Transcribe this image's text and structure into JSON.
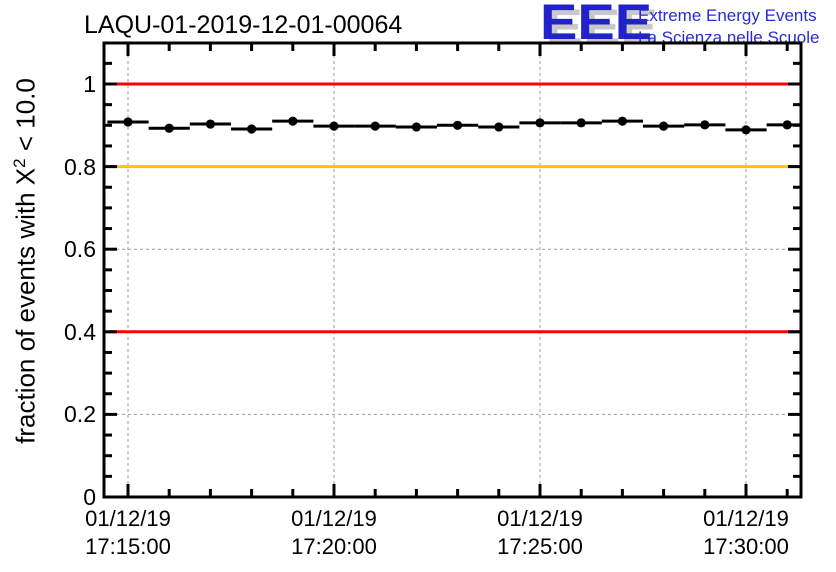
{
  "header": {
    "title": "LAQU-01-2019-12-01-00064"
  },
  "logo": {
    "acronym": "EEE",
    "line1": "Extreme Energy Events",
    "line2": "La Scienza nelle Scuole",
    "text_color": "#2a2ad6",
    "acronym_color": "#2222cc",
    "shadow_color": "#c9c9c9"
  },
  "chart_data": {
    "type": "scatter",
    "title": "LAQU-01-2019-12-01-00064",
    "xlabel": "",
    "ylabel": "fraction of events with X2 < 10.0",
    "ylabel_parts": {
      "prefix": "fraction of events with X",
      "sup": "2",
      "suffix": " < 10.0"
    },
    "ylim": [
      0,
      1.1
    ],
    "xlim_minutes": [
      -0.58,
      16.33
    ],
    "grid": true,
    "marker": "filled-circle",
    "marker_color": "#000000",
    "x_error_minutes": 0.5,
    "date": "01/12/19",
    "x_major_ticks": [
      {
        "minute": 0,
        "label_line1": "01/12/19",
        "label_line2": "17:15:00"
      },
      {
        "minute": 5,
        "label_line1": "01/12/19",
        "label_line2": "17:20:00"
      },
      {
        "minute": 10,
        "label_line1": "01/12/19",
        "label_line2": "17:25:00"
      },
      {
        "minute": 15,
        "label_line1": "01/12/19",
        "label_line2": "17:30:00"
      }
    ],
    "x_minor_step_minutes": 1,
    "y_major_ticks": [
      {
        "value": 0,
        "label": "0"
      },
      {
        "value": 0.2,
        "label": "0.2"
      },
      {
        "value": 0.4,
        "label": "0.4"
      },
      {
        "value": 0.6,
        "label": "0.6"
      },
      {
        "value": 0.8,
        "label": "0.8"
      },
      {
        "value": 1.0,
        "label": "1"
      }
    ],
    "y_minor_step": 0.05,
    "reference_lines": [
      {
        "y": 1.0,
        "color": "#ff0000",
        "name": "upper-alarm-line"
      },
      {
        "y": 0.8,
        "color": "#ffc400",
        "name": "warning-line"
      },
      {
        "y": 0.4,
        "color": "#ff0000",
        "name": "lower-alarm-line"
      }
    ],
    "gridline_color": "#9c9c9c",
    "points": [
      {
        "time": "17:15:00",
        "value": 0.908
      },
      {
        "time": "17:16:00",
        "value": 0.893
      },
      {
        "time": "17:17:00",
        "value": 0.903
      },
      {
        "time": "17:18:00",
        "value": 0.891
      },
      {
        "time": "17:19:00",
        "value": 0.91
      },
      {
        "time": "17:20:00",
        "value": 0.898
      },
      {
        "time": "17:21:00",
        "value": 0.898
      },
      {
        "time": "17:22:00",
        "value": 0.896
      },
      {
        "time": "17:23:00",
        "value": 0.9
      },
      {
        "time": "17:24:00",
        "value": 0.896
      },
      {
        "time": "17:25:00",
        "value": 0.906
      },
      {
        "time": "17:26:00",
        "value": 0.906
      },
      {
        "time": "17:27:00",
        "value": 0.91
      },
      {
        "time": "17:28:00",
        "value": 0.898
      },
      {
        "time": "17:29:00",
        "value": 0.901
      },
      {
        "time": "17:30:00",
        "value": 0.889
      },
      {
        "time": "17:31:00",
        "value": 0.901
      }
    ]
  }
}
